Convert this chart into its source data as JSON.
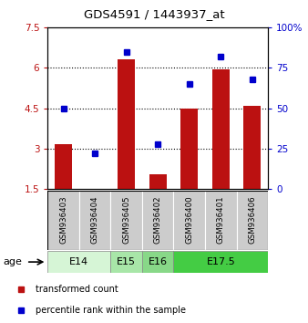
{
  "title": "GDS4591 / 1443937_at",
  "samples": [
    "GSM936403",
    "GSM936404",
    "GSM936405",
    "GSM936402",
    "GSM936400",
    "GSM936401",
    "GSM936406"
  ],
  "transformed_count": [
    3.15,
    1.52,
    6.3,
    2.05,
    4.5,
    5.95,
    4.6
  ],
  "percentile_rank": [
    50,
    22,
    85,
    28,
    65,
    82,
    68
  ],
  "age_groups": [
    {
      "label": "E14",
      "samples": [
        "GSM936403",
        "GSM936404"
      ],
      "color": "#d6f5d6"
    },
    {
      "label": "E15",
      "samples": [
        "GSM936405"
      ],
      "color": "#a8e6a8"
    },
    {
      "label": "E16",
      "samples": [
        "GSM936402"
      ],
      "color": "#88d888"
    },
    {
      "label": "E17.5",
      "samples": [
        "GSM936400",
        "GSM936401",
        "GSM936406"
      ],
      "color": "#44cc44"
    }
  ],
  "ylim_left": [
    1.5,
    7.5
  ],
  "ylim_right": [
    0,
    100
  ],
  "yticks_left": [
    1.5,
    3.0,
    4.5,
    6.0,
    7.5
  ],
  "yticks_right": [
    0,
    25,
    50,
    75,
    100
  ],
  "ytick_labels_left": [
    "1.5",
    "3",
    "4.5",
    "6",
    "7.5"
  ],
  "ytick_labels_right": [
    "0",
    "25",
    "50",
    "75",
    "100%"
  ],
  "bar_color": "#bb1111",
  "dot_color": "#0000cc",
  "bar_width": 0.55,
  "sample_box_color": "#cccccc",
  "age_label": "age"
}
